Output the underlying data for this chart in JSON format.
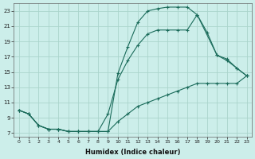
{
  "xlabel": "Humidex (Indice chaleur)",
  "bg_color": "#cceeea",
  "grid_color": "#aad4cc",
  "line_color": "#1a6b5a",
  "xlim": [
    -0.5,
    23.5
  ],
  "ylim": [
    6.5,
    24.0
  ],
  "yticks": [
    7,
    9,
    11,
    13,
    15,
    17,
    19,
    21,
    23
  ],
  "xticks": [
    0,
    1,
    2,
    3,
    4,
    5,
    6,
    7,
    8,
    9,
    10,
    11,
    12,
    13,
    14,
    15,
    16,
    17,
    18,
    19,
    20,
    21,
    22,
    23
  ],
  "line1_x": [
    0,
    1,
    2,
    3,
    4,
    5,
    6,
    7,
    8,
    9,
    10,
    11,
    12,
    13,
    14,
    15,
    16,
    17,
    18,
    20,
    21,
    22,
    23
  ],
  "line1_y": [
    10,
    9.5,
    8,
    7.5,
    7.5,
    7.2,
    7.2,
    7.2,
    7.2,
    7.2,
    14.8,
    18.3,
    21.5,
    23.0,
    23.3,
    23.5,
    23.5,
    23.5,
    22.5,
    17.2,
    16.7,
    15.5,
    14.5
  ],
  "line2_x": [
    0,
    1,
    2,
    3,
    4,
    5,
    6,
    7,
    8,
    9,
    10,
    11,
    12,
    13,
    14,
    15,
    16,
    17,
    18,
    19,
    20,
    21,
    22,
    23
  ],
  "line2_y": [
    10,
    9.5,
    8,
    7.5,
    7.5,
    7.2,
    7.2,
    7.2,
    7.2,
    9.5,
    14.0,
    16.5,
    18.5,
    20.0,
    20.5,
    20.5,
    20.5,
    20.5,
    22.5,
    20.2,
    17.2,
    16.5,
    15.5,
    14.5
  ],
  "line3_x": [
    0,
    1,
    2,
    3,
    4,
    5,
    6,
    7,
    8,
    9,
    10,
    11,
    12,
    13,
    14,
    15,
    16,
    17,
    18,
    19,
    20,
    21,
    22,
    23
  ],
  "line3_y": [
    10,
    9.5,
    8,
    7.5,
    7.5,
    7.2,
    7.2,
    7.2,
    7.2,
    7.2,
    8.5,
    9.5,
    10.5,
    11.0,
    11.5,
    12.0,
    12.5,
    13.0,
    13.5,
    13.5,
    13.5,
    13.5,
    13.5,
    14.5
  ]
}
